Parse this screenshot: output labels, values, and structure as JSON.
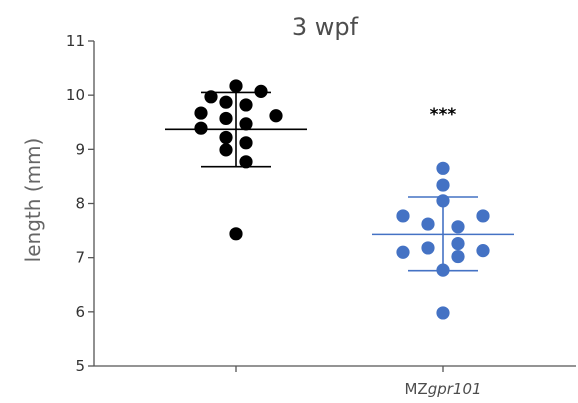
{
  "chart_data": {
    "type": "scatter",
    "title": "3 wpf",
    "ylabel": "length (mm)",
    "xlabel": "",
    "ylim": [
      5,
      11
    ],
    "yticks": [
      "5",
      "6",
      "7",
      "8",
      "9",
      "10",
      "11"
    ],
    "categories": [
      {
        "prefix": "",
        "italic": ""
      },
      {
        "prefix": "MZ",
        "italic": "gpr101"
      }
    ],
    "series": [
      {
        "color": "#000000",
        "mean": 9.37,
        "sd_upper": 10.05,
        "sd_lower": 8.68,
        "points": [
          {
            "offset": -0.35,
            "y": 9.67
          },
          {
            "offset": -0.35,
            "y": 9.39
          },
          {
            "offset": 0.0,
            "y": 10.17
          },
          {
            "offset": 0.25,
            "y": 10.07
          },
          {
            "offset": -0.25,
            "y": 9.97
          },
          {
            "offset": -0.1,
            "y": 9.87
          },
          {
            "offset": 0.1,
            "y": 9.82
          },
          {
            "offset": -0.1,
            "y": 9.57
          },
          {
            "offset": 0.1,
            "y": 9.47
          },
          {
            "offset": 0.4,
            "y": 9.62
          },
          {
            "offset": -0.1,
            "y": 9.22
          },
          {
            "offset": 0.1,
            "y": 9.12
          },
          {
            "offset": -0.1,
            "y": 8.99
          },
          {
            "offset": 0.1,
            "y": 8.77
          },
          {
            "offset": 0.0,
            "y": 7.44
          }
        ]
      },
      {
        "color": "#4472c4",
        "mean": 7.43,
        "sd_upper": 8.12,
        "sd_lower": 6.76,
        "significance": "***",
        "points": [
          {
            "offset": 0.0,
            "y": 8.65
          },
          {
            "offset": 0.0,
            "y": 8.34
          },
          {
            "offset": 0.0,
            "y": 8.05
          },
          {
            "offset": -0.4,
            "y": 7.77
          },
          {
            "offset": 0.4,
            "y": 7.77
          },
          {
            "offset": -0.15,
            "y": 7.62
          },
          {
            "offset": 0.15,
            "y": 7.57
          },
          {
            "offset": 0.15,
            "y": 7.26
          },
          {
            "offset": -0.15,
            "y": 7.18
          },
          {
            "offset": -0.4,
            "y": 7.1
          },
          {
            "offset": 0.4,
            "y": 7.13
          },
          {
            "offset": 0.15,
            "y": 7.02
          },
          {
            "offset": 0.0,
            "y": 6.77
          },
          {
            "offset": 0.0,
            "y": 5.98
          }
        ]
      }
    ]
  }
}
